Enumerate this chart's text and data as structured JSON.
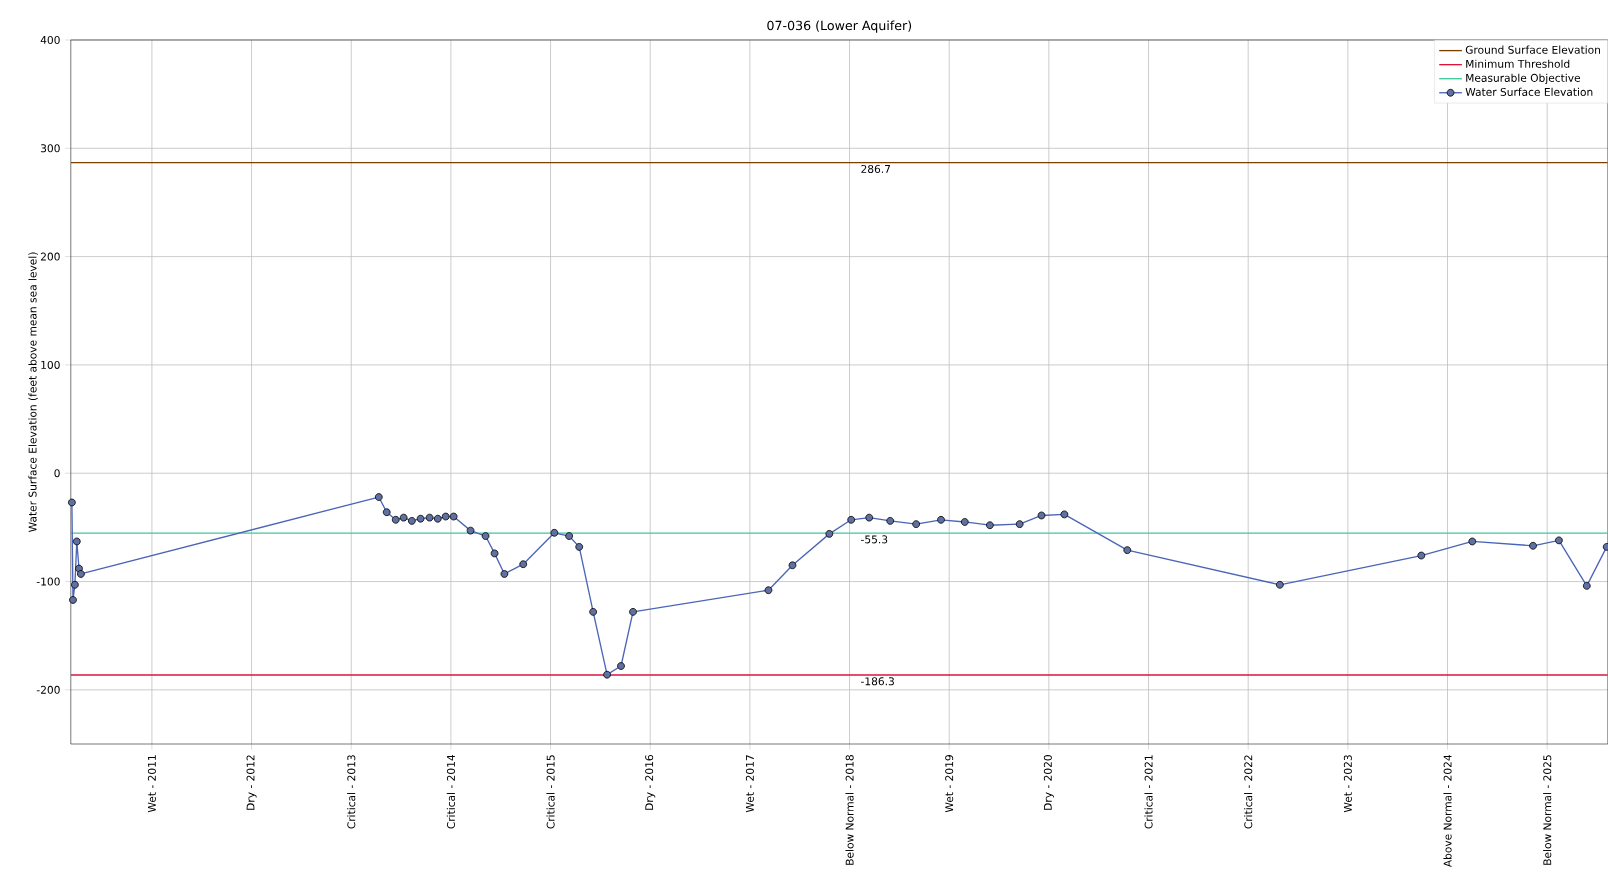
{
  "chart_data": {
    "type": "line",
    "title": "07-036 (Lower Aquifer)",
    "ylabel": "Water Surface Elevation (feet above mean sea level)",
    "xlim": [
      "2010-03-10",
      "2025-08-11"
    ],
    "ylim": [
      -250,
      400
    ],
    "xticks": [
      {
        "value": "2011-01-01",
        "label": "Wet - 2011"
      },
      {
        "value": "2012-01-01",
        "label": "Dry - 2012"
      },
      {
        "value": "2013-01-01",
        "label": "Critical - 2013"
      },
      {
        "value": "2014-01-01",
        "label": "Critical - 2014"
      },
      {
        "value": "2015-01-01",
        "label": "Critical - 2015"
      },
      {
        "value": "2016-01-01",
        "label": "Dry - 2016"
      },
      {
        "value": "2017-01-01",
        "label": "Wet - 2017"
      },
      {
        "value": "2018-01-01",
        "label": "Below Normal - 2018"
      },
      {
        "value": "2019-01-01",
        "label": "Wet - 2019"
      },
      {
        "value": "2020-01-01",
        "label": "Dry - 2020"
      },
      {
        "value": "2021-01-01",
        "label": "Critical - 2021"
      },
      {
        "value": "2022-01-01",
        "label": "Critical - 2022"
      },
      {
        "value": "2023-01-01",
        "label": "Wet - 2023"
      },
      {
        "value": "2024-01-01",
        "label": "Above Normal - 2024"
      },
      {
        "value": "2025-01-01",
        "label": "Below Normal - 2025"
      }
    ],
    "yticks": [
      -200,
      -100,
      0,
      100,
      200,
      300,
      400
    ],
    "grid": true,
    "legend": "top right",
    "series": [
      {
        "name": "Ground Surface Elevation",
        "color": "#7b3f00",
        "marker": "none",
        "x": [
          "2010-03-10",
          "2025-08-11"
        ],
        "values": [
          286.7,
          286.7
        ]
      },
      {
        "name": "Minimum Threshold",
        "color": "#dc143c",
        "marker": "none",
        "x": [
          "2010-03-10",
          "2025-08-11"
        ],
        "values": [
          -186.3,
          -186.3
        ]
      },
      {
        "name": "Measurable Objective",
        "color": "#3cc8a0",
        "marker": "none",
        "x": [
          "2010-03-10",
          "2025-08-11"
        ],
        "values": [
          -55.3,
          -55.3
        ]
      },
      {
        "name": "Water Surface Elevation",
        "color": "#4a65b8",
        "marker": "circle",
        "x": [
          "2010-03-14",
          "2010-03-18",
          "2010-03-25",
          "2010-04-01",
          "2010-04-09",
          "2010-04-16",
          "2013-04-12",
          "2013-05-11",
          "2013-06-13",
          "2013-07-12",
          "2013-08-11",
          "2013-09-12",
          "2013-10-15",
          "2013-11-14",
          "2013-12-13",
          "2014-01-11",
          "2014-03-14",
          "2014-05-08",
          "2014-06-10",
          "2014-07-16",
          "2014-09-23",
          "2015-01-15",
          "2015-03-10",
          "2015-04-16",
          "2015-06-06",
          "2015-07-27",
          "2015-09-16",
          "2015-10-30",
          "2017-03-10",
          "2017-06-06",
          "2017-10-19",
          "2018-01-07",
          "2018-03-14",
          "2018-05-30",
          "2018-09-02",
          "2018-12-02",
          "2019-02-27",
          "2019-05-30",
          "2019-09-16",
          "2019-12-05",
          "2020-02-27",
          "2020-10-15",
          "2022-04-27",
          "2023-09-27",
          "2024-04-01",
          "2024-11-10",
          "2025-02-13",
          "2025-05-26",
          "2025-08-07"
        ],
        "values": [
          -27,
          -117,
          -103,
          -63,
          -88,
          -93,
          -22,
          -36,
          -43,
          -41,
          -44,
          -42,
          -41,
          -42,
          -40,
          -40,
          -53,
          -58,
          -74,
          -93,
          -84,
          -55,
          -58,
          -68,
          -128,
          -186,
          -178,
          -128,
          -108,
          -85,
          -56,
          -43,
          -41,
          -44,
          -47,
          -43,
          -45,
          -48,
          -47,
          -39,
          -38,
          -71,
          -103,
          -76,
          -63,
          -67,
          -62,
          -104,
          -68
        ]
      }
    ],
    "annotations": [
      {
        "text": "286.7",
        "x": "2018-02-02",
        "y": 286.7
      },
      {
        "text": "-186.3",
        "x": "2018-02-02",
        "y": -186.3
      },
      {
        "text": "-55.3",
        "x": "2018-02-02",
        "y": -55.3
      }
    ]
  }
}
